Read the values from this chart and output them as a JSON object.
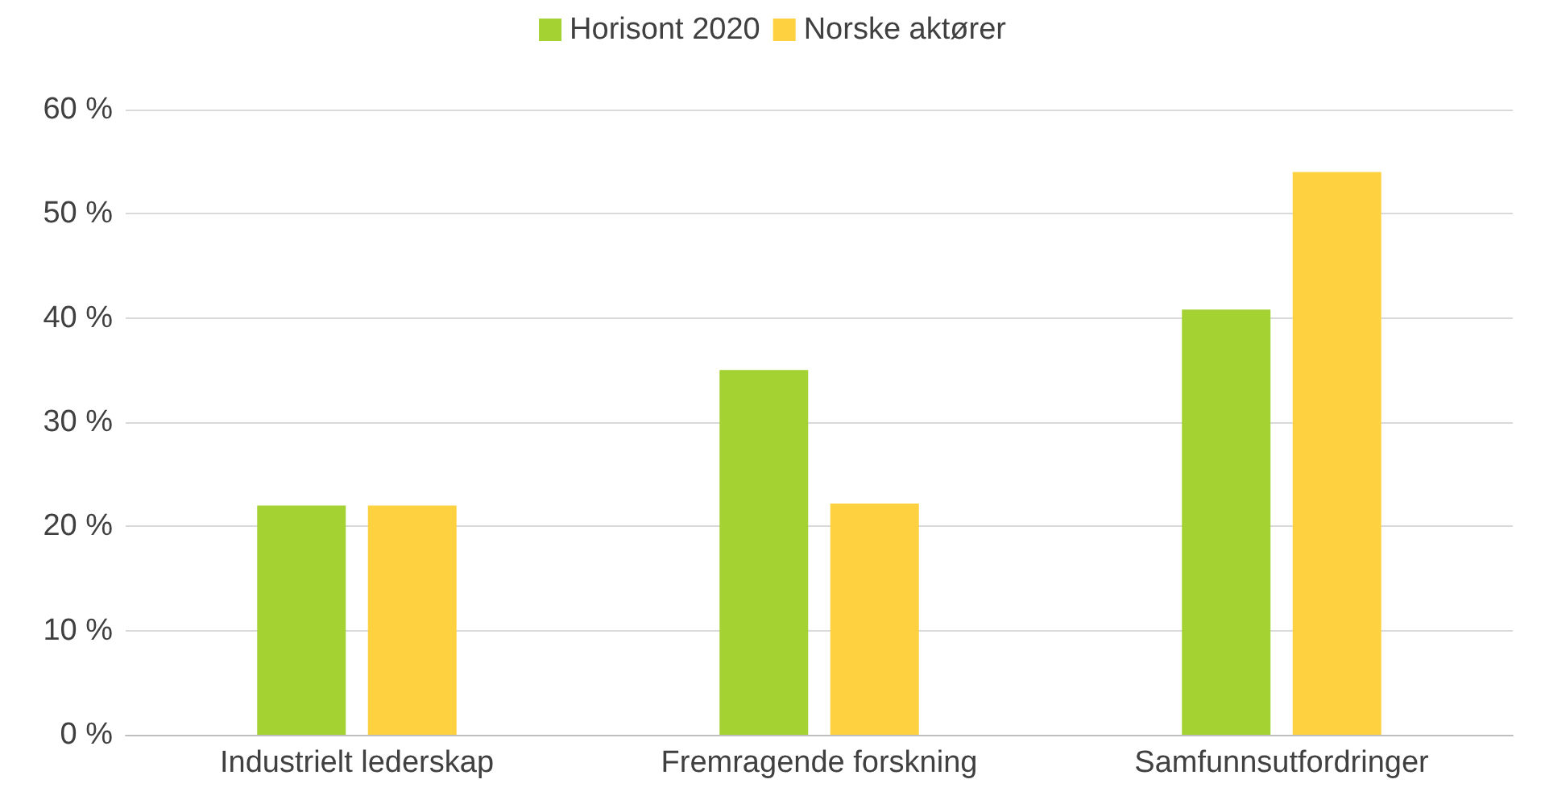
{
  "chart_data": {
    "type": "bar",
    "categories": [
      "Industrielt lederskap",
      "Fremragende forskning",
      "Samfunnsutfordringer"
    ],
    "series": [
      {
        "name": "Horisont 2020",
        "color": "#a4d233",
        "values": [
          22,
          35,
          40.8
        ]
      },
      {
        "name": "Norske aktører",
        "color": "#fed140",
        "values": [
          22,
          22.2,
          54
        ]
      }
    ],
    "ylim": [
      0,
      60
    ],
    "yticks": [
      {
        "value": 0,
        "label": "0 %"
      },
      {
        "value": 10,
        "label": "10 %"
      },
      {
        "value": 20,
        "label": "20 %"
      },
      {
        "value": 30,
        "label": "30 %"
      },
      {
        "value": 40,
        "label": "40 %"
      },
      {
        "value": 50,
        "label": "50 %"
      },
      {
        "value": 60,
        "label": "60 %"
      }
    ],
    "grid": "y",
    "legend": "top"
  }
}
